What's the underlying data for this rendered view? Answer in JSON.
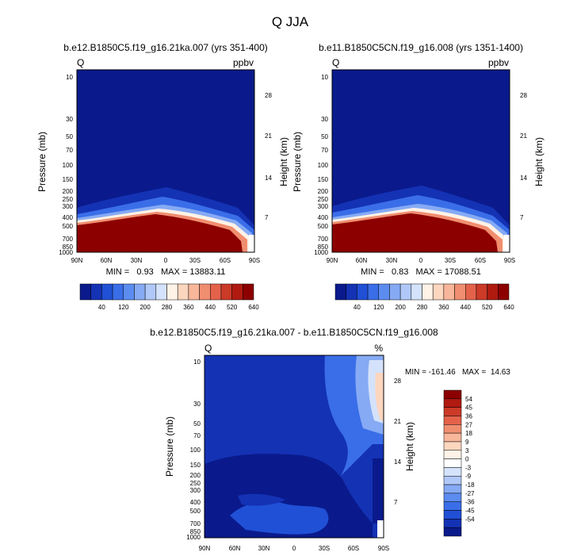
{
  "title": "Q JJA",
  "chart_data": [
    {
      "type": "heatmap",
      "title": "b.e12.B1850C5.f19_g16.21ka.007 (yrs 351-400)",
      "left_label": "Q",
      "right_label": "ppbv",
      "xlabel": "",
      "ylabel": "Pressure (mb)",
      "y2label": "Height (km)",
      "x_ticks": [
        "90N",
        "60N",
        "30N",
        "0",
        "30S",
        "60S",
        "90S"
      ],
      "y_ticks": [
        "10",
        "30",
        "50",
        "70",
        "100",
        "150",
        "200",
        "250",
        "300",
        "400",
        "500",
        "700",
        "850",
        "1000"
      ],
      "y2_ticks": [
        "28",
        "21",
        "14",
        "7"
      ],
      "y_scale": "log",
      "ylim": [
        1000,
        10
      ],
      "stats": "MIN =   0.93   MAX = 13883.11",
      "colorbar": {
        "levels": [
          "40",
          "120",
          "200",
          "280",
          "360",
          "440",
          "520",
          "640"
        ],
        "colors": [
          "#0a1a8c",
          "#1432b4",
          "#2050d6",
          "#3a6ee8",
          "#5c8cf0",
          "#86aaf4",
          "#b0c8f8",
          "#d4e2fb",
          "#fff2e6",
          "#fcd6bf",
          "#f8b69a",
          "#f08e70",
          "#e4624a",
          "#cc3a28",
          "#b01a10",
          "#8c0000"
        ]
      }
    },
    {
      "type": "heatmap",
      "title": "b.e11.B1850C5CN.f19_g16.008 (yrs 1351-1400)",
      "left_label": "Q",
      "right_label": "ppbv",
      "xlabel": "",
      "ylabel": "Pressure (mb)",
      "y2label": "Height (km)",
      "x_ticks": [
        "90N",
        "60N",
        "30N",
        "0",
        "30S",
        "60S",
        "90S"
      ],
      "y_ticks": [
        "10",
        "30",
        "50",
        "70",
        "100",
        "150",
        "200",
        "250",
        "300",
        "400",
        "500",
        "700",
        "850",
        "1000"
      ],
      "y2_ticks": [
        "28",
        "21",
        "14",
        "7"
      ],
      "y_scale": "log",
      "ylim": [
        1000,
        10
      ],
      "stats": "MIN =   0.83   MAX = 17088.51",
      "colorbar": {
        "levels": [
          "40",
          "120",
          "200",
          "280",
          "360",
          "440",
          "520",
          "640"
        ],
        "colors": [
          "#0a1a8c",
          "#1432b4",
          "#2050d6",
          "#3a6ee8",
          "#5c8cf0",
          "#86aaf4",
          "#b0c8f8",
          "#d4e2fb",
          "#fff2e6",
          "#fcd6bf",
          "#f8b69a",
          "#f08e70",
          "#e4624a",
          "#cc3a28",
          "#b01a10",
          "#8c0000"
        ]
      }
    },
    {
      "type": "heatmap",
      "title": "b.e12.B1850C5.f19_g16.21ka.007 - b.e11.B1850C5CN.f19_g16.008",
      "left_label": "Q",
      "right_label": "%",
      "xlabel": "",
      "ylabel": "Pressure (mb)",
      "y2label": "Height (km)",
      "x_ticks": [
        "90N",
        "60N",
        "30N",
        "0",
        "30S",
        "60S",
        "90S"
      ],
      "y_ticks": [
        "10",
        "30",
        "50",
        "70",
        "100",
        "150",
        "200",
        "250",
        "300",
        "400",
        "500",
        "700",
        "850",
        "1000"
      ],
      "y2_ticks": [
        "28",
        "21",
        "14",
        "7"
      ],
      "y_scale": "log",
      "ylim": [
        1000,
        10
      ],
      "stats": "MIN = -161.46   MAX =  14.63",
      "colorbar": {
        "levels": [
          "54",
          "45",
          "36",
          "27",
          "18",
          "9",
          "3",
          "0",
          "-3",
          "-9",
          "-18",
          "-27",
          "-36",
          "-45",
          "-54"
        ],
        "colors": [
          "#8c0000",
          "#b01a10",
          "#cc3a28",
          "#e4624a",
          "#f08e70",
          "#f8b69a",
          "#fcd6bf",
          "#fff2e6",
          "#ffffff",
          "#d4e2fb",
          "#b0c8f8",
          "#86aaf4",
          "#5c8cf0",
          "#3a6ee8",
          "#2050d6",
          "#1432b4",
          "#0a1a8c"
        ]
      }
    }
  ]
}
